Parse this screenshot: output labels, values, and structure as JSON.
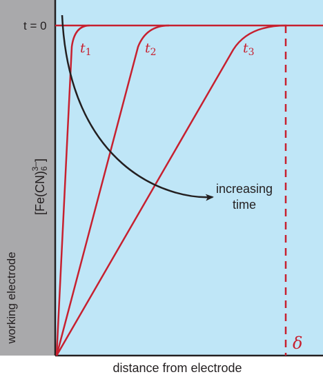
{
  "figure": {
    "t0_label": "t = 0",
    "t1_label": "t",
    "t1_sub": "1",
    "t2_label": "t",
    "t2_sub": "2",
    "t3_label": "t",
    "t3_sub": "3",
    "arrow_label_line1": "increasing",
    "arrow_label_line2": "time",
    "delta_label": "δ",
    "xlabel": "distance from electrode",
    "ylabel_base": "[Fe(CN)",
    "ylabel_sub": "6",
    "ylabel_sup": "3–",
    "ylabel_close": "]",
    "electrode_label": "working electrode"
  },
  "colors": {
    "solution": "#bfe6f7",
    "electrode": "#a9a9ab",
    "curve": "#c7202f",
    "ink": "#231f20"
  }
}
